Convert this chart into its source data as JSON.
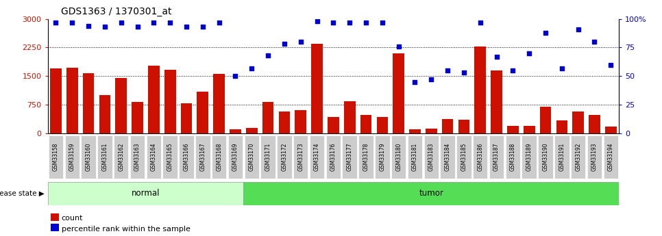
{
  "title": "GDS1363 / 1370301_at",
  "samples": [
    "GSM33158",
    "GSM33159",
    "GSM33160",
    "GSM33161",
    "GSM33162",
    "GSM33163",
    "GSM33164",
    "GSM33165",
    "GSM33166",
    "GSM33167",
    "GSM33168",
    "GSM33169",
    "GSM33170",
    "GSM33171",
    "GSM33172",
    "GSM33173",
    "GSM33174",
    "GSM33176",
    "GSM33177",
    "GSM33178",
    "GSM33179",
    "GSM33180",
    "GSM33181",
    "GSM33183",
    "GSM33184",
    "GSM33185",
    "GSM33186",
    "GSM33187",
    "GSM33188",
    "GSM33189",
    "GSM33190",
    "GSM33191",
    "GSM33192",
    "GSM33193",
    "GSM33194"
  ],
  "counts": [
    1700,
    1720,
    1580,
    1000,
    1450,
    820,
    1780,
    1670,
    780,
    1100,
    1560,
    100,
    150,
    820,
    580,
    600,
    2350,
    430,
    850,
    480,
    430,
    2100,
    100,
    130,
    380,
    350,
    2280,
    1650,
    190,
    200,
    700,
    340,
    570,
    490,
    170
  ],
  "percentile": [
    97,
    97,
    94,
    93,
    97,
    93,
    97,
    97,
    93,
    93,
    97,
    50,
    57,
    68,
    78,
    80,
    98,
    97,
    97,
    97,
    97,
    76,
    45,
    47,
    55,
    53,
    97,
    67,
    55,
    70,
    88,
    57,
    91,
    80,
    60
  ],
  "disease_state": [
    "normal",
    "normal",
    "normal",
    "normal",
    "normal",
    "normal",
    "normal",
    "normal",
    "normal",
    "normal",
    "normal",
    "normal",
    "tumor",
    "tumor",
    "tumor",
    "tumor",
    "tumor",
    "tumor",
    "tumor",
    "tumor",
    "tumor",
    "tumor",
    "tumor",
    "tumor",
    "tumor",
    "tumor",
    "tumor",
    "tumor",
    "tumor",
    "tumor",
    "tumor",
    "tumor",
    "tumor",
    "tumor",
    "tumor"
  ],
  "normal_color": "#ccffcc",
  "tumor_color": "#55dd55",
  "bar_color": "#cc1100",
  "dot_color": "#0000cc",
  "ylim_left": [
    0,
    3000
  ],
  "ylim_right": [
    0,
    100
  ],
  "yticks_left": [
    0,
    750,
    1500,
    2250,
    3000
  ],
  "yticks_right": [
    0,
    25,
    50,
    75,
    100
  ],
  "legend_count_label": "count",
  "legend_pct_label": "percentile rank within the sample",
  "disease_state_label": "disease state"
}
